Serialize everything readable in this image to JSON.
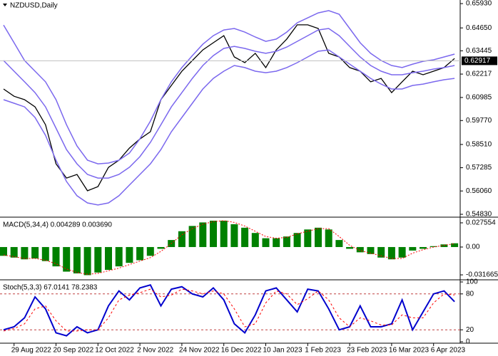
{
  "chart_data": [
    {
      "type": "price",
      "title": "NZDUSD,Daily",
      "categories": [
        null,
        "29 Aug 2022",
        null,
        null,
        null,
        "20 Sep 2022",
        null,
        null,
        null,
        "12 Oct 2022",
        null,
        null,
        null,
        "2 Nov 2022",
        null,
        null,
        null,
        "24 Nov 2022",
        null,
        null,
        null,
        "16 Dec 2022",
        null,
        null,
        null,
        "10 Jan 2023",
        null,
        null,
        null,
        "1 Feb 2023",
        null,
        null,
        null,
        "23 Feb 2023",
        null,
        null,
        null,
        "16 Mar 2023",
        null,
        null,
        null,
        "6 Apr 2023",
        null,
        null
      ],
      "series": [
        {
          "color": "#000000",
          "values": [
            0.6143,
            0.6105,
            0.6087,
            0.6049,
            0.5955,
            0.5749,
            0.5674,
            0.5693,
            0.5607,
            0.5629,
            0.573,
            0.5768,
            0.5832,
            0.588,
            0.5918,
            0.6087,
            0.6162,
            0.6237,
            0.6293,
            0.6349,
            0.6387,
            0.6424,
            0.6312,
            0.6282,
            0.6331,
            0.6256,
            0.6349,
            0.6406,
            0.6481,
            0.6481,
            0.6462,
            0.6331,
            0.6312,
            0.6256,
            0.6237,
            0.6181,
            0.6199,
            0.6124,
            0.6181,
            0.6237,
            0.6218,
            0.6237,
            0.6256,
            0.6304
          ]
        },
        {
          "color": "#7b68ee",
          "values": [
            0.648,
            0.6387,
            0.6293,
            0.6237,
            0.6181,
            0.6087,
            0.5955,
            0.5843,
            0.5768,
            0.5749,
            0.5753,
            0.5768,
            0.5806,
            0.5881,
            0.5974,
            0.6087,
            0.6181,
            0.6256,
            0.6319,
            0.6379,
            0.6424,
            0.6454,
            0.6462,
            0.6443,
            0.6417,
            0.6394,
            0.6406,
            0.6443,
            0.6492,
            0.6518,
            0.6544,
            0.6556,
            0.6537,
            0.6462,
            0.6387,
            0.6331,
            0.6293,
            0.6267,
            0.6256,
            0.6274,
            0.6289,
            0.6297,
            0.6312,
            0.6327
          ]
        },
        {
          "color": "#7b68ee",
          "values": [
            0.6293,
            0.6237,
            0.6181,
            0.6124,
            0.6049,
            0.5937,
            0.5824,
            0.5749,
            0.5693,
            0.5674,
            0.5674,
            0.5693,
            0.5731,
            0.5787,
            0.5862,
            0.5955,
            0.6049,
            0.6124,
            0.6199,
            0.6267,
            0.6319,
            0.6357,
            0.6368,
            0.6357,
            0.6342,
            0.6331,
            0.6342,
            0.6364,
            0.6394,
            0.6424,
            0.6454,
            0.6462,
            0.6424,
            0.6368,
            0.6312,
            0.6267,
            0.6237,
            0.6218,
            0.6218,
            0.6229,
            0.6237,
            0.6248,
            0.6256,
            0.6267
          ]
        },
        {
          "color": "#7b68ee",
          "values": [
            0.6087,
            0.6068,
            0.6049,
            0.5993,
            0.5899,
            0.5768,
            0.5656,
            0.5581,
            0.5543,
            0.5532,
            0.5543,
            0.5581,
            0.5637,
            0.5693,
            0.5749,
            0.5824,
            0.5918,
            0.5993,
            0.6068,
            0.6143,
            0.6199,
            0.6237,
            0.6267,
            0.6256,
            0.6237,
            0.6229,
            0.6237,
            0.6256,
            0.6282,
            0.6312,
            0.6342,
            0.6349,
            0.6312,
            0.6274,
            0.6237,
            0.6199,
            0.6169,
            0.6143,
            0.6143,
            0.6162,
            0.6169,
            0.6181,
            0.6192,
            0.6199
          ]
        }
      ],
      "current_price": 0.62917,
      "ylim": [
        0.5468,
        0.6612
      ],
      "yticks": [
        {
          "value": 0.6593,
          "label": "0.65930"
        },
        {
          "value": 0.6465,
          "label": "0.64650"
        },
        0.63445,
        0.62217,
        0.60985,
        {
          "value": 0.5977,
          "label": "0.59770"
        },
        {
          "value": 0.5851,
          "label": "0.58510"
        },
        0.57285,
        {
          "value": 0.5606,
          "label": "0.56060"
        },
        {
          "value": 0.5483,
          "label": "0.54830"
        }
      ]
    },
    {
      "type": "macd",
      "title": "MACD(5,34,4) 0.004289 0.003690",
      "color": "#008000",
      "values": [
        -0.01,
        -0.012,
        -0.014,
        -0.013,
        -0.016,
        -0.022,
        -0.028,
        -0.03,
        -0.032,
        -0.029,
        -0.026,
        -0.022,
        -0.018,
        -0.015,
        -0.01,
        -0.002,
        0.008,
        0.018,
        0.024,
        0.028,
        0.03,
        0.03,
        0.026,
        0.022,
        0.016,
        0.01,
        0.01,
        0.012,
        0.016,
        0.02,
        0.022,
        0.02,
        0.008,
        -0.002,
        -0.006,
        -0.008,
        -0.012,
        -0.014,
        -0.012,
        -0.004,
        -0.002,
        0.001,
        0.003,
        0.004289
      ],
      "signal": {
        "color": "#ff0000",
        "values": [
          -0.009,
          -0.011,
          -0.013,
          -0.013,
          -0.015,
          -0.019,
          -0.025,
          -0.029,
          -0.031,
          -0.03,
          -0.027,
          -0.024,
          -0.02,
          -0.016,
          -0.012,
          -0.005,
          0.004,
          0.014,
          0.021,
          0.026,
          0.029,
          0.03,
          0.028,
          0.024,
          0.018,
          0.012,
          0.01,
          0.011,
          0.015,
          0.018,
          0.021,
          0.021,
          0.012,
          0.002,
          -0.004,
          -0.007,
          -0.01,
          -0.013,
          -0.013,
          -0.007,
          -0.003,
          0.0,
          0.002,
          0.00369
        ]
      },
      "ylim": [
        -0.0365,
        0.0332
      ],
      "yticks": [
        0.027554,
        {
          "value": 0,
          "label": "0.00"
        },
        -0.031665
      ]
    },
    {
      "type": "stoch",
      "title": "Stoch(5,3,3) 67.0141 78.2383",
      "series": [
        {
          "color": "#0000cd",
          "values": [
            20,
            25,
            40,
            75,
            55,
            15,
            10,
            25,
            15,
            20,
            60,
            85,
            70,
            90,
            95,
            60,
            88,
            92,
            80,
            75,
            90,
            70,
            30,
            15,
            45,
            85,
            90,
            70,
            50,
            88,
            85,
            55,
            20,
            25,
            60,
            25,
            25,
            30,
            70,
            20,
            50,
            80,
            85,
            67.0141
          ]
        },
        {
          "color": "#ff0000",
          "dashed": true,
          "values": [
            18,
            22,
            30,
            55,
            60,
            35,
            18,
            18,
            20,
            20,
            40,
            70,
            78,
            82,
            88,
            75,
            78,
            88,
            85,
            80,
            85,
            80,
            55,
            25,
            30,
            65,
            85,
            80,
            62,
            72,
            85,
            70,
            40,
            25,
            40,
            35,
            28,
            28,
            45,
            40,
            40,
            65,
            80,
            78.2383
          ]
        }
      ],
      "levels": [
        80,
        20
      ],
      "ylim": [
        0,
        100
      ],
      "yticks": [
        100,
        80,
        20,
        0
      ]
    }
  ]
}
